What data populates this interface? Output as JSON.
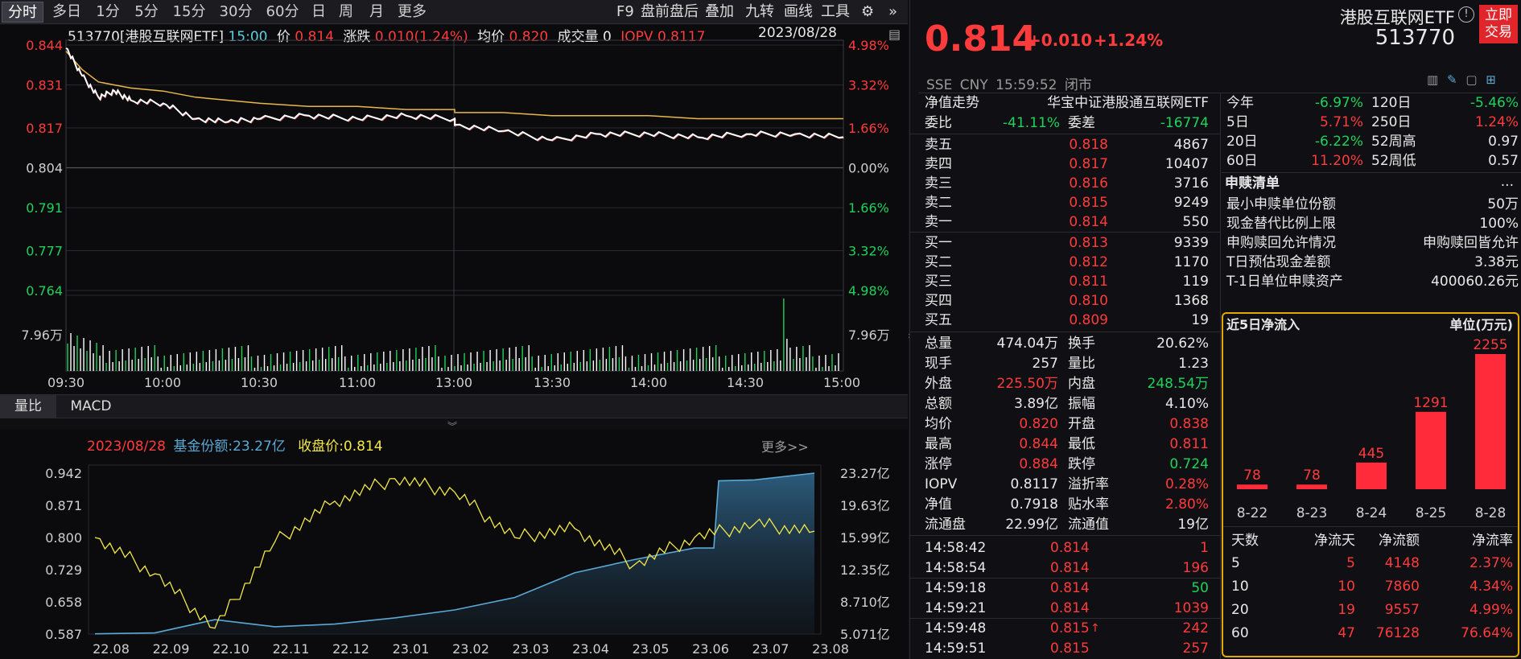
{
  "toolbar": {
    "periods": [
      "分时",
      "多日",
      "1分",
      "5分",
      "15分",
      "30分",
      "60分",
      "日",
      "周",
      "月",
      "更多"
    ],
    "tools": [
      "F9",
      "盘前盘后",
      "叠加",
      "九转",
      "画线",
      "工具"
    ]
  },
  "intraday": {
    "code_name": "513770[港股互联网ETF]",
    "time": "15:00",
    "price_label": "价",
    "price": "0.814",
    "change_label": "涨跌",
    "change": "0.010(1.24%)",
    "avg_label": "均价",
    "avg": "0.820",
    "volume_label": "成交量",
    "volume": "0",
    "iopv_label": "IOPV",
    "iopv": "0.8117",
    "date": "2023/08/28",
    "price_ticks": [
      "0.844",
      "0.831",
      "0.817",
      "0.804",
      "0.791",
      "0.777",
      "0.764"
    ],
    "pct_ticks": [
      "4.98%",
      "3.32%",
      "1.66%",
      "0.00%",
      "1.66%",
      "3.32%",
      "4.98%"
    ],
    "vol_tick": "7.96万",
    "time_ticks": [
      "09:30",
      "10:00",
      "10:30",
      "11:00",
      "13:00",
      "13:30",
      "14:00",
      "14:30",
      "15:00"
    ]
  },
  "tabs": {
    "vol_ratio": "量比",
    "macd": "MACD"
  },
  "fund_chart": {
    "date": "2023/08/28",
    "shares_label": "基金份额:23.27亿",
    "close_label": "收盘价:0.814",
    "more": "更多>>",
    "left_ticks": [
      "0.942",
      "0.871",
      "0.800",
      "0.729",
      "0.658",
      "0.587"
    ],
    "right_ticks": [
      "23.27亿",
      "19.63亿",
      "15.99亿",
      "12.35亿",
      "8.710亿",
      "5.071亿"
    ],
    "x_ticks": [
      "22.08",
      "22.09",
      "22.10",
      "22.11",
      "22.12",
      "23.01",
      "23.02",
      "23.03",
      "23.04",
      "23.05",
      "23.06",
      "23.07",
      "23.08"
    ]
  },
  "quote": {
    "name": "港股互联网ETF",
    "code": "513770",
    "price": "0.814",
    "change": "+0.010",
    "change_pct": "+1.24%",
    "trade_btn_line1": "立即",
    "trade_btn_line2": "交易",
    "exchange": "SSE",
    "currency": "CNY",
    "time": "15:59:52",
    "status": "闭市",
    "nav_trend_label": "净值走势",
    "index_name": "华宝中证港股通互联网ETF",
    "weibi_label": "委比",
    "weibi": "-41.11%",
    "weicha_label": "委差",
    "weicha": "-16774"
  },
  "order_book": {
    "asks": [
      {
        "label": "卖五",
        "price": "0.818",
        "vol": "4867"
      },
      {
        "label": "卖四",
        "price": "0.817",
        "vol": "10407"
      },
      {
        "label": "卖三",
        "price": "0.816",
        "vol": "3716"
      },
      {
        "label": "卖二",
        "price": "0.815",
        "vol": "9249"
      },
      {
        "label": "卖一",
        "price": "0.814",
        "vol": "550"
      }
    ],
    "bids": [
      {
        "label": "买一",
        "price": "0.813",
        "vol": "9339"
      },
      {
        "label": "买二",
        "price": "0.812",
        "vol": "1170"
      },
      {
        "label": "买三",
        "price": "0.811",
        "vol": "119"
      },
      {
        "label": "买四",
        "price": "0.810",
        "vol": "1368"
      },
      {
        "label": "买五",
        "price": "0.809",
        "vol": "19"
      }
    ]
  },
  "stats": [
    {
      "l1": "总量",
      "v1": "474.04万",
      "c1": "white",
      "l2": "换手",
      "v2": "20.62%",
      "c2": "white"
    },
    {
      "l1": "现手",
      "v1": "257",
      "c1": "white",
      "l2": "量比",
      "v2": "1.23",
      "c2": "white"
    },
    {
      "l1": "外盘",
      "v1": "225.50万",
      "c1": "red",
      "l2": "内盘",
      "v2": "248.54万",
      "c2": "green"
    },
    {
      "l1": "总额",
      "v1": "3.89亿",
      "c1": "white",
      "l2": "振幅",
      "v2": "4.10%",
      "c2": "white"
    },
    {
      "l1": "均价",
      "v1": "0.820",
      "c1": "red",
      "l2": "开盘",
      "v2": "0.838",
      "c2": "red"
    },
    {
      "l1": "最高",
      "v1": "0.844",
      "c1": "red",
      "l2": "最低",
      "v2": "0.811",
      "c2": "red"
    },
    {
      "l1": "涨停",
      "v1": "0.884",
      "c1": "red",
      "l2": "跌停",
      "v2": "0.724",
      "c2": "green"
    },
    {
      "l1": "IOPV",
      "v1": "0.8117",
      "c1": "white",
      "l2": "溢折率",
      "v2": "0.28%",
      "c2": "red"
    },
    {
      "l1": "净值",
      "v1": "0.7918",
      "c1": "white",
      "l2": "贴水率",
      "v2": "2.80%",
      "c2": "red"
    },
    {
      "l1": "流通盘",
      "v1": "22.99亿",
      "c1": "white",
      "l2": "流通值",
      "v2": "19亿",
      "c2": "white"
    }
  ],
  "ticks": [
    {
      "time": "14:58:42",
      "price": "0.814",
      "vol": "1",
      "vc": "red",
      "arrow": ""
    },
    {
      "time": "14:58:54",
      "price": "0.814",
      "vol": "196",
      "vc": "red",
      "arrow": ""
    },
    {
      "time": "14:59:18",
      "price": "0.814",
      "vol": "50",
      "vc": "green",
      "arrow": ""
    },
    {
      "time": "14:59:21",
      "price": "0.814",
      "vol": "1039",
      "vc": "red",
      "arrow": ""
    },
    {
      "time": "14:59:48",
      "price": "0.815",
      "vol": "242",
      "vc": "red",
      "arrow": "↑"
    },
    {
      "time": "14:59:51",
      "price": "0.815",
      "vol": "257",
      "vc": "red",
      "arrow": ""
    }
  ],
  "performance": [
    {
      "l1": "今年",
      "v1": "-6.97%",
      "c1": "green",
      "l2": "120日",
      "v2": "-5.46%",
      "c2": "green"
    },
    {
      "l1": "5日",
      "v1": "5.71%",
      "c1": "red",
      "l2": "250日",
      "v2": "1.24%",
      "c2": "red"
    },
    {
      "l1": "20日",
      "v1": "-6.22%",
      "c1": "green",
      "l2": "52周高",
      "v2": "0.97",
      "c2": "white"
    },
    {
      "l1": "60日",
      "v1": "11.20%",
      "c1": "red",
      "l2": "52周低",
      "v2": "0.57",
      "c2": "white"
    }
  ],
  "subscription": {
    "title": "申赎清单",
    "more": "...",
    "rows": [
      {
        "label": "最小申赎单位份额",
        "value": "50万"
      },
      {
        "label": "现金替代比例上限",
        "value": "100%"
      },
      {
        "label": "申购赎回允许情况",
        "value": "申购赎回皆允许"
      },
      {
        "label": "T日预估现金差额",
        "value": "3.38元"
      },
      {
        "label": "T-1日单位申赎资产",
        "value": "400060.26元"
      }
    ]
  },
  "net_inflow": {
    "title": "近5日净流入",
    "unit": "单位(万元)",
    "table_headers": [
      "天数",
      "净流天",
      "净流额",
      "净流率"
    ],
    "table_rows": [
      {
        "days": "5",
        "flow_days": "5",
        "amount": "4148",
        "rate": "2.37%"
      },
      {
        "days": "10",
        "flow_days": "10",
        "amount": "7860",
        "rate": "4.34%"
      },
      {
        "days": "20",
        "flow_days": "19",
        "amount": "9557",
        "rate": "4.99%"
      },
      {
        "days": "60",
        "flow_days": "47",
        "amount": "76128",
        "rate": "76.64%"
      }
    ]
  },
  "colors": {
    "up": "#ff3b3b",
    "down": "#1fd25a",
    "price_line": "#ffffff",
    "avg_line": "#e8b84a",
    "fund_price_line": "#f3e847",
    "fund_shares_line": "#5aa9d6",
    "highlight_border": "#e4a900"
  },
  "chart_data": [
    {
      "type": "line",
      "x": [
        "09:30",
        "09:35",
        "09:40",
        "09:45",
        "09:50",
        "10:00",
        "10:10",
        "10:20",
        "10:30",
        "10:45",
        "11:00",
        "11:15",
        "11:30",
        "13:00",
        "13:15",
        "13:30",
        "13:45",
        "14:00",
        "14:15",
        "14:30",
        "14:45",
        "15:00"
      ],
      "series": [
        {
          "values": [
            0.843,
            0.834,
            0.827,
            0.829,
            0.826,
            0.825,
            0.82,
            0.819,
            0.82,
            0.821,
            0.82,
            0.821,
            0.82,
            0.818,
            0.816,
            0.813,
            0.815,
            0.815,
            0.814,
            0.815,
            0.815,
            0.814
          ]
        },
        {
          "values": [
            0.842,
            0.836,
            0.832,
            0.831,
            0.83,
            0.829,
            0.827,
            0.826,
            0.825,
            0.824,
            0.824,
            0.823,
            0.823,
            0.822,
            0.822,
            0.821,
            0.821,
            0.821,
            0.82,
            0.82,
            0.82,
            0.82
          ]
        }
      ],
      "ylim": [
        0.764,
        0.844
      ]
    },
    {
      "type": "bar",
      "categories": [
        "8-22",
        "8-23",
        "8-24",
        "8-25",
        "8-28"
      ],
      "values": [
        78,
        78,
        445,
        1291,
        2255
      ],
      "title": "近5日净流入",
      "ylabel": "单位(万元)"
    },
    {
      "type": "line",
      "x": [
        "22.08",
        "22.09",
        "22.10",
        "22.11",
        "22.12",
        "23.01",
        "23.02",
        "23.03",
        "23.04",
        "23.05",
        "23.06",
        "23.07",
        "23.08"
      ],
      "series": [
        {
          "name": "收盘价",
          "values": [
            0.8,
            0.72,
            0.6,
            0.79,
            0.88,
            0.93,
            0.9,
            0.8,
            0.82,
            0.74,
            0.8,
            0.83,
            0.814
          ]
        },
        {
          "name": "基金份额",
          "values": [
            5.1,
            5.2,
            6.7,
            5.9,
            6.2,
            6.9,
            7.8,
            9.2,
            12.0,
            13.5,
            14.8,
            22.5,
            23.27
          ]
        }
      ],
      "ylim": [
        0.587,
        0.942
      ]
    }
  ]
}
